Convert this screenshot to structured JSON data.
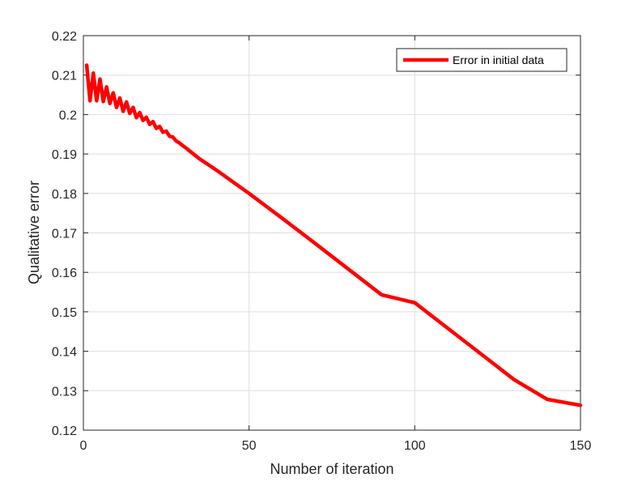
{
  "chart_data": {
    "type": "line",
    "xlabel": "Number of iteration",
    "ylabel": "Qualitative error",
    "xlim": [
      0,
      150
    ],
    "ylim": [
      0.12,
      0.22
    ],
    "x_ticks": [
      "0",
      "50",
      "100",
      "150"
    ],
    "y_ticks": [
      "0.12",
      "0.13",
      "0.14",
      "0.15",
      "0.16",
      "0.17",
      "0.18",
      "0.19",
      "0.2",
      "0.21",
      "0.22"
    ],
    "grid": true,
    "legend_position": "top-right",
    "series": [
      {
        "name": "Error in initial data",
        "color": "#ff0000",
        "x": [
          1,
          2,
          3,
          4,
          5,
          6,
          7,
          8,
          9,
          10,
          11,
          12,
          13,
          14,
          15,
          16,
          17,
          18,
          19,
          20,
          21,
          22,
          23,
          24,
          25,
          26,
          27,
          28,
          29,
          30,
          31,
          32,
          35,
          40,
          50,
          60,
          70,
          80,
          90,
          100,
          110,
          120,
          130,
          140,
          150
        ],
        "y": [
          0.2125,
          0.2035,
          0.2105,
          0.2035,
          0.209,
          0.2033,
          0.207,
          0.2028,
          0.2055,
          0.2018,
          0.2042,
          0.2008,
          0.2032,
          0.2003,
          0.2018,
          0.1992,
          0.2005,
          0.1985,
          0.1993,
          0.1975,
          0.1982,
          0.1965,
          0.197,
          0.1955,
          0.1958,
          0.1945,
          0.1943,
          0.1933,
          0.1928,
          0.1921,
          0.1915,
          0.1908,
          0.1888,
          0.186,
          0.18,
          0.1737,
          0.1673,
          0.1608,
          0.1543,
          0.1523,
          0.1458,
          0.1393,
          0.1328,
          0.1278,
          0.1263
        ]
      }
    ]
  }
}
